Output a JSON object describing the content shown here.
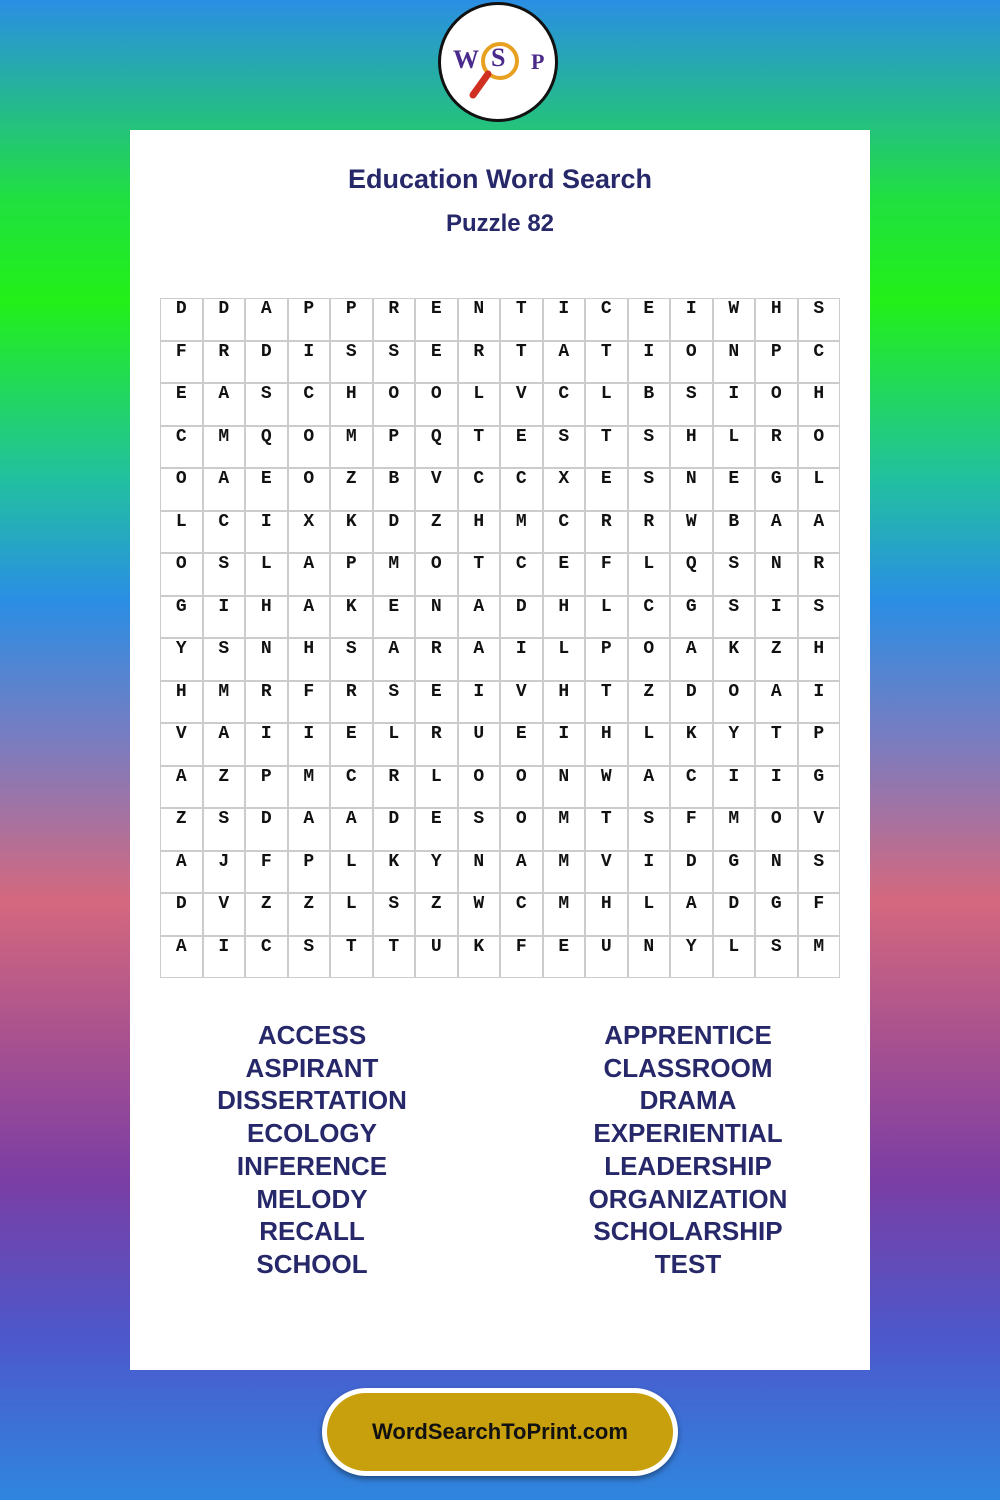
{
  "logo": {
    "letters": [
      "W",
      "S",
      "P"
    ]
  },
  "header": {
    "title": "Education Word Search",
    "subtitle": "Puzzle 82"
  },
  "grid": {
    "rows": [
      [
        "D",
        "D",
        "A",
        "P",
        "P",
        "R",
        "E",
        "N",
        "T",
        "I",
        "C",
        "E",
        "I",
        "W",
        "H",
        "S"
      ],
      [
        "F",
        "R",
        "D",
        "I",
        "S",
        "S",
        "E",
        "R",
        "T",
        "A",
        "T",
        "I",
        "O",
        "N",
        "P",
        "C"
      ],
      [
        "E",
        "A",
        "S",
        "C",
        "H",
        "O",
        "O",
        "L",
        "V",
        "C",
        "L",
        "B",
        "S",
        "I",
        "O",
        "H"
      ],
      [
        "C",
        "M",
        "Q",
        "O",
        "M",
        "P",
        "Q",
        "T",
        "E",
        "S",
        "T",
        "S",
        "H",
        "L",
        "R",
        "O"
      ],
      [
        "O",
        "A",
        "E",
        "O",
        "Z",
        "B",
        "V",
        "C",
        "C",
        "X",
        "E",
        "S",
        "N",
        "E",
        "G",
        "L"
      ],
      [
        "L",
        "C",
        "I",
        "X",
        "K",
        "D",
        "Z",
        "H",
        "M",
        "C",
        "R",
        "R",
        "W",
        "B",
        "A",
        "A"
      ],
      [
        "O",
        "S",
        "L",
        "A",
        "P",
        "M",
        "O",
        "T",
        "C",
        "E",
        "F",
        "L",
        "Q",
        "S",
        "N",
        "R"
      ],
      [
        "G",
        "I",
        "H",
        "A",
        "K",
        "E",
        "N",
        "A",
        "D",
        "H",
        "L",
        "C",
        "G",
        "S",
        "I",
        "S"
      ],
      [
        "Y",
        "S",
        "N",
        "H",
        "S",
        "A",
        "R",
        "A",
        "I",
        "L",
        "P",
        "O",
        "A",
        "K",
        "Z",
        "H"
      ],
      [
        "H",
        "M",
        "R",
        "F",
        "R",
        "S",
        "E",
        "I",
        "V",
        "H",
        "T",
        "Z",
        "D",
        "O",
        "A",
        "I"
      ],
      [
        "V",
        "A",
        "I",
        "I",
        "E",
        "L",
        "R",
        "U",
        "E",
        "I",
        "H",
        "L",
        "K",
        "Y",
        "T",
        "P"
      ],
      [
        "A",
        "Z",
        "P",
        "M",
        "C",
        "R",
        "L",
        "O",
        "O",
        "N",
        "W",
        "A",
        "C",
        "I",
        "I",
        "G"
      ],
      [
        "Z",
        "S",
        "D",
        "A",
        "A",
        "D",
        "E",
        "S",
        "O",
        "M",
        "T",
        "S",
        "F",
        "M",
        "O",
        "V"
      ],
      [
        "A",
        "J",
        "F",
        "P",
        "L",
        "K",
        "Y",
        "N",
        "A",
        "M",
        "V",
        "I",
        "D",
        "G",
        "N",
        "S"
      ],
      [
        "D",
        "V",
        "Z",
        "Z",
        "L",
        "S",
        "Z",
        "W",
        "C",
        "M",
        "H",
        "L",
        "A",
        "D",
        "G",
        "F"
      ],
      [
        "A",
        "I",
        "C",
        "S",
        "T",
        "T",
        "U",
        "K",
        "F",
        "E",
        "U",
        "N",
        "Y",
        "L",
        "S",
        "M"
      ]
    ]
  },
  "word_list": {
    "left": [
      "ACCESS",
      "ASPIRANT",
      "DISSERTATION",
      "ECOLOGY",
      "INFERENCE",
      "MELODY",
      "RECALL",
      "SCHOOL"
    ],
    "right": [
      "APPRENTICE",
      "CLASSROOM",
      "DRAMA",
      "EXPERIENTIAL",
      "LEADERSHIP",
      "ORGANIZATION",
      "SCHOLARSHIP",
      "TEST"
    ]
  },
  "footer": {
    "site": "WordSearchToPrint.com"
  }
}
